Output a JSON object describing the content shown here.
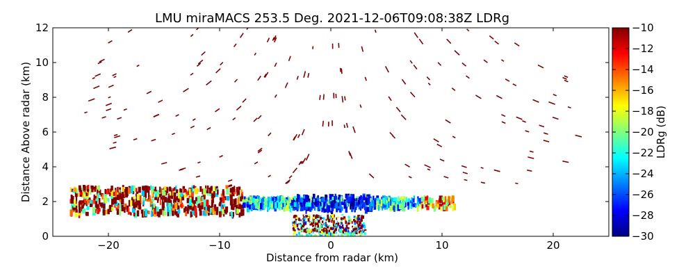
{
  "chart_data": {
    "type": "heatmap",
    "title": "LMU miraMACS 253.5 Deg. 2021-12-06T09:08:38Z  LDRg",
    "xlabel": "Distance from radar (km)",
    "ylabel": "Distance Above radar  (km)",
    "xlim": [
      -25,
      25
    ],
    "ylim": [
      0,
      12
    ],
    "xticks": [
      -20,
      -10,
      0,
      10,
      20
    ],
    "yticks": [
      0,
      2,
      4,
      6,
      8,
      10,
      12
    ],
    "xtick_labels": [
      "−20",
      "−10",
      "0",
      "10",
      "20"
    ],
    "ytick_labels": [
      "0",
      "2",
      "4",
      "6",
      "8",
      "10",
      "12"
    ],
    "grid": false,
    "colorbar": {
      "label": "LDRg (dB)",
      "range": [
        -30,
        -10
      ],
      "ticks": [
        -30,
        -28,
        -26,
        -24,
        -22,
        -20,
        -18,
        -16,
        -14,
        -12,
        -10
      ],
      "tick_labels": [
        "−30",
        "−28",
        "−26",
        "−24",
        "−22",
        "−20",
        "−18",
        "−16",
        "−14",
        "−12",
        "−10"
      ],
      "colormap": "jet",
      "colors": [
        "#00007f",
        "#0000ff",
        "#007fff",
        "#00ffff",
        "#7fff7f",
        "#ffff00",
        "#ff7f00",
        "#ff0000",
        "#7f0000"
      ]
    },
    "layers": [
      {
        "name": "boundary layer echo",
        "x_range": [
          -23.5,
          11
        ],
        "height_range": [
          1.2,
          2.8
        ],
        "ldr_range": [
          -30,
          -10
        ],
        "ldr_core": -28
      },
      {
        "name": "low echo near radar",
        "x_range": [
          -3.5,
          3
        ],
        "height_range": [
          0,
          1.2
        ],
        "ldr_range": [
          -30,
          -10
        ]
      },
      {
        "name": "scattered insects/noise",
        "x_range": [
          -23,
          23.5
        ],
        "height_range": [
          2.8,
          12
        ],
        "ldr_typical": -10
      }
    ],
    "noise_arcs_km": [
      5,
      6.5,
      8,
      9.5,
      11,
      12.5,
      14,
      15.5,
      17,
      18.5,
      20,
      21.5,
      23
    ]
  }
}
